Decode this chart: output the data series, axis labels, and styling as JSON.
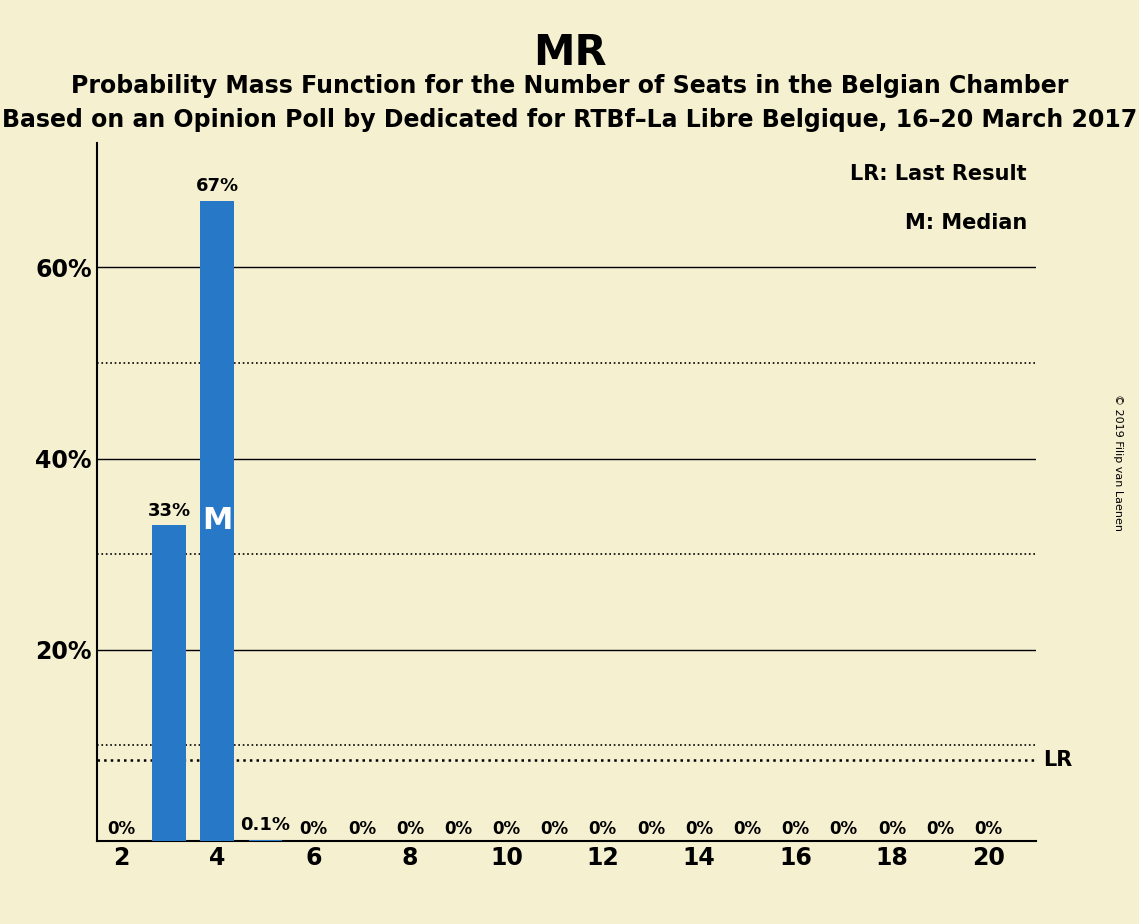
{
  "title": "MR",
  "subtitle1": "Probability Mass Function for the Number of Seats in the Belgian Chamber",
  "subtitle2": "Based on an Opinion Poll by Dedicated for RTBf–La Libre Belgique, 16–20 March 2017",
  "background_color": "#f5f0d0",
  "bar_color": "#2878c8",
  "x_min": 1.5,
  "x_max": 21.0,
  "y_min": 0,
  "y_max": 0.73,
  "x_ticks": [
    2,
    4,
    6,
    8,
    10,
    12,
    14,
    16,
    18,
    20
  ],
  "y_ticks_solid": [
    0.2,
    0.4,
    0.6
  ],
  "y_ticks_dotted": [
    0.1,
    0.3,
    0.5
  ],
  "seats": [
    2,
    3,
    4,
    5,
    6,
    7,
    8,
    9,
    10,
    11,
    12,
    13,
    14,
    15,
    16,
    17,
    18,
    19,
    20
  ],
  "probabilities": [
    0.0,
    0.33,
    0.67,
    0.001,
    0.0,
    0.0,
    0.0,
    0.0,
    0.0,
    0.0,
    0.0,
    0.0,
    0.0,
    0.0,
    0.0,
    0.0,
    0.0,
    0.0,
    0.0
  ],
  "bar_labels": [
    "0%",
    "33%",
    "67%",
    "0.1%",
    "0%",
    "0%",
    "0%",
    "0%",
    "0%",
    "0%",
    "0%",
    "0%",
    "0%",
    "0%",
    "0%",
    "0%",
    "0%",
    "0%",
    "0%"
  ],
  "median_seat": 4,
  "lr_value": 0.085,
  "lr_label": "LR",
  "legend_lr": "LR: Last Result",
  "legend_m": "M: Median",
  "copyright": "© 2019 Filip van Laenen",
  "title_fontsize": 30,
  "subtitle_fontsize": 17,
  "label_fontsize": 13,
  "tick_fontsize": 17,
  "bar_width": 0.7
}
